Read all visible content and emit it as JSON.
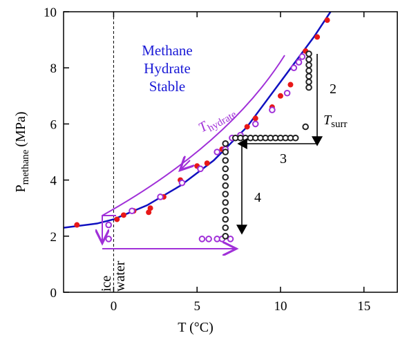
{
  "chart_data": {
    "type": "scatter",
    "xlabel": {
      "main": "T",
      "unit": "(°C)"
    },
    "ylabel": {
      "main": "P",
      "sub": "methane",
      "unit": "(MPa)"
    },
    "xlim": [
      -3,
      17
    ],
    "ylim": [
      0,
      10
    ],
    "xticks": [
      0,
      5,
      10,
      15
    ],
    "yticks": [
      0,
      2,
      4,
      6,
      8,
      10
    ],
    "series": [
      {
        "style": "line",
        "color": "#1010c0",
        "x": [
          -3,
          -1,
          0,
          2,
          4,
          6,
          8,
          10,
          12,
          13
        ],
        "values": [
          2.3,
          2.45,
          2.6,
          3.1,
          3.8,
          4.7,
          5.9,
          7.5,
          9.1,
          10
        ]
      },
      {
        "style": "filled",
        "color": "#e81818",
        "x": [
          -2.2,
          0.2,
          0.6,
          1.2,
          2.2,
          2.1,
          3.0,
          4.0,
          5.0,
          5.6,
          6.5,
          7.3,
          8.0,
          8.5,
          9.5,
          10.0,
          10.6,
          11.5,
          12.2,
          12.8,
          7.0
        ],
        "values": [
          2.4,
          2.6,
          2.75,
          2.9,
          3.0,
          2.85,
          3.4,
          4.0,
          4.5,
          4.6,
          5.1,
          5.5,
          5.9,
          6.2,
          6.6,
          7.0,
          7.4,
          8.6,
          9.1,
          9.7,
          1.9
        ]
      },
      {
        "style": "open",
        "color": "#a030d8",
        "x": [
          -0.3,
          -0.3,
          1.1,
          2.8,
          4.1,
          5.2,
          6.2,
          6.7,
          7.1,
          7.6,
          8.5,
          9.5,
          10.4,
          10.8,
          11.1,
          11.3,
          5.3,
          5.7,
          6.2,
          6.5,
          7.0
        ],
        "values": [
          2.4,
          1.9,
          2.9,
          3.4,
          3.9,
          4.4,
          5.0,
          5.1,
          5.5,
          5.6,
          6.0,
          6.5,
          7.1,
          8.0,
          8.2,
          8.4,
          1.9,
          1.9,
          1.9,
          1.9,
          1.9
        ]
      },
      {
        "style": "open",
        "color": "#222222",
        "x": [
          11.7,
          11.7,
          11.7,
          11.7,
          11.7,
          11.7,
          11.7,
          11.5,
          7.3,
          7.6,
          7.9,
          8.2,
          8.5,
          8.8,
          9.1,
          9.4,
          9.7,
          10.0,
          10.3,
          10.6,
          10.9,
          6.7,
          6.7,
          6.7,
          6.7,
          6.7,
          6.7,
          6.7,
          6.7,
          6.7,
          6.7,
          6.7,
          6.7
        ],
        "values": [
          8.5,
          8.3,
          8.1,
          7.9,
          7.7,
          7.5,
          7.3,
          5.9,
          5.5,
          5.5,
          5.5,
          5.5,
          5.5,
          5.5,
          5.5,
          5.5,
          5.5,
          5.5,
          5.5,
          5.5,
          5.5,
          5.3,
          5.0,
          4.7,
          4.4,
          4.1,
          3.8,
          3.5,
          3.2,
          2.9,
          2.6,
          2.3,
          2.0
        ]
      }
    ],
    "annotations": {
      "stable": [
        "Methane",
        "Hydrate",
        "Stable"
      ],
      "t_hydrate": {
        "main": "T",
        "sub": "hydrate"
      },
      "t_surr": {
        "main": "T",
        "sub": "surr"
      },
      "steps": [
        "2",
        "3",
        "4"
      ],
      "ice": "ice",
      "water": "water"
    }
  }
}
